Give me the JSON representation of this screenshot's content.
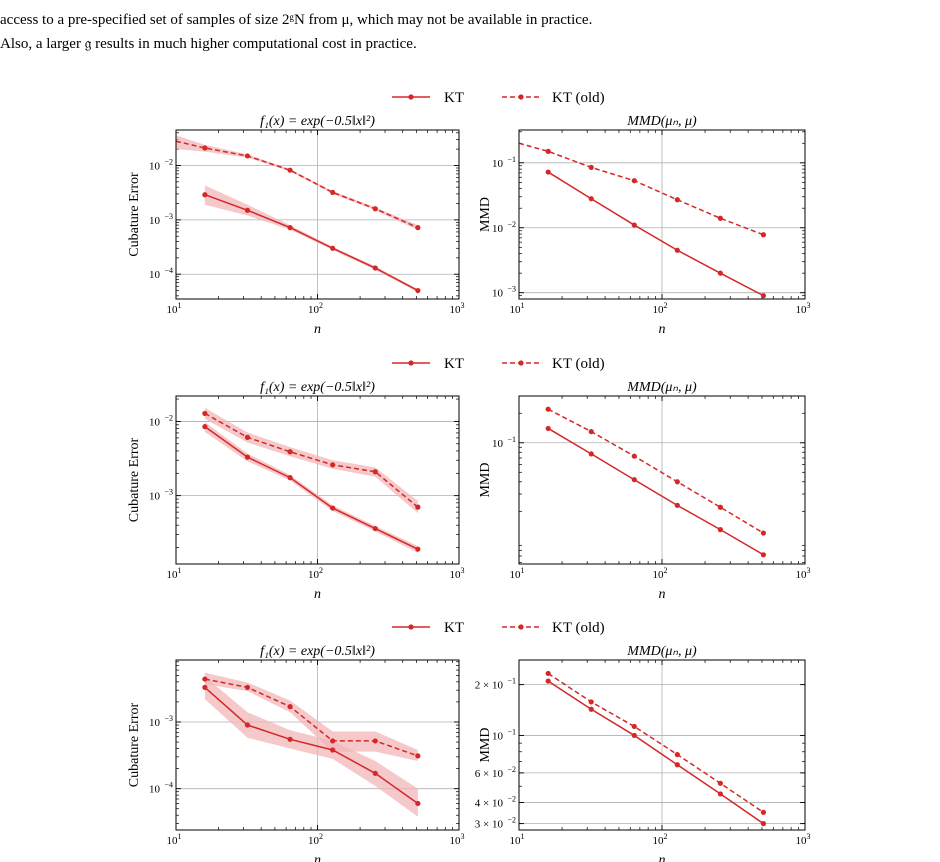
{
  "text": {
    "line1": "access to a pre-specified set of samples of size 2ᵍN from μ, which may not be available in practice.",
    "line2": "Also, a larger 𝔤 results in much higher computational cost in practice."
  },
  "legend": {
    "kt": "KT",
    "kt_old": "KT (old)"
  },
  "colors": {
    "series": "#d62728",
    "band": "#f2b6b8",
    "grid": "#b0b0b0"
  },
  "chart_data": [
    {
      "type": "line",
      "title": "f₁(x) = exp(−0.5‖x‖²)",
      "xlabel": "n",
      "ylabel": "Cubature Error",
      "xscale": "log",
      "yscale": "log",
      "xlim": [
        10,
        1000
      ],
      "ylim": [
        3.5e-05,
        0.045
      ],
      "xticks": [
        {
          "v": 10,
          "b": "10",
          "e": "1"
        },
        {
          "v": 100,
          "b": "10",
          "e": "2"
        },
        {
          "v": 1000,
          "b": "10",
          "e": "3"
        }
      ],
      "yticks": [
        {
          "v": 0.0001,
          "b": "10",
          "e": "−4"
        },
        {
          "v": 0.001,
          "b": "10",
          "e": "−3"
        },
        {
          "v": 0.01,
          "b": "10",
          "e": "−2"
        }
      ],
      "grid": true,
      "series": [
        {
          "name": "KT",
          "dashed": false,
          "x": [
            16,
            32,
            64,
            128,
            256,
            512
          ],
          "y": [
            0.0029,
            0.0015,
            0.00072,
            0.0003,
            0.00013,
            5e-05
          ],
          "band_low": [
            0.0019,
            0.0012,
            0.00066,
            0.00028,
            0.00012,
            4.7e-05
          ],
          "band_high": [
            0.0043,
            0.0019,
            0.0008,
            0.00032,
            0.00014,
            5.3e-05
          ]
        },
        {
          "name": "KT (old)",
          "dashed": true,
          "x": [
            10,
            16,
            32,
            64,
            128,
            256,
            512
          ],
          "y": [
            0.028,
            0.021,
            0.015,
            0.0082,
            0.0032,
            0.0016,
            0.00072
          ],
          "markers_from": 1,
          "band_low": [
            0.02,
            0.018,
            0.014,
            0.0078,
            0.003,
            0.0015,
            0.00065
          ],
          "band_high": [
            0.036,
            0.024,
            0.016,
            0.0086,
            0.0034,
            0.0017,
            0.0008
          ]
        }
      ]
    },
    {
      "type": "line",
      "title": "MMD(μₙ, μ)",
      "xlabel": "n",
      "ylabel": "MMD",
      "xscale": "log",
      "yscale": "log",
      "xlim": [
        10,
        1000
      ],
      "ylim": [
        0.0008,
        0.32
      ],
      "xticks": [
        {
          "v": 10,
          "b": "10",
          "e": "1"
        },
        {
          "v": 100,
          "b": "10",
          "e": "2"
        },
        {
          "v": 1000,
          "b": "10",
          "e": "3"
        }
      ],
      "yticks": [
        {
          "v": 0.001,
          "b": "10",
          "e": "−3"
        },
        {
          "v": 0.01,
          "b": "10",
          "e": "−2"
        },
        {
          "v": 0.1,
          "b": "10",
          "e": "−1"
        }
      ],
      "grid": true,
      "series": [
        {
          "name": "KT",
          "dashed": false,
          "x": [
            16,
            32,
            64,
            128,
            256,
            512
          ],
          "y": [
            0.072,
            0.028,
            0.011,
            0.0045,
            0.002,
            0.0009
          ]
        },
        {
          "name": "KT (old)",
          "dashed": true,
          "x": [
            10,
            16,
            32,
            64,
            128,
            256,
            512
          ],
          "y": [
            0.2,
            0.15,
            0.085,
            0.053,
            0.027,
            0.014,
            0.0078
          ],
          "markers_from": 1
        }
      ]
    },
    {
      "type": "line",
      "title": "f₁(x) = exp(−0.5‖x‖²)",
      "xlabel": "n",
      "ylabel": "Cubature Error",
      "xscale": "log",
      "yscale": "log",
      "xlim": [
        10,
        1000
      ],
      "ylim": [
        0.00012,
        0.022
      ],
      "xticks": [
        {
          "v": 10,
          "b": "10",
          "e": "1"
        },
        {
          "v": 100,
          "b": "10",
          "e": "2"
        },
        {
          "v": 1000,
          "b": "10",
          "e": "3"
        }
      ],
      "yticks": [
        {
          "v": 0.001,
          "b": "10",
          "e": "−3"
        },
        {
          "v": 0.01,
          "b": "10",
          "e": "−2"
        }
      ],
      "grid": true,
      "series": [
        {
          "name": "KT",
          "dashed": false,
          "x": [
            16,
            32,
            64,
            128,
            256,
            512
          ],
          "y": [
            0.0085,
            0.0033,
            0.00175,
            0.00068,
            0.00036,
            0.00019
          ],
          "band_low": [
            0.0072,
            0.0029,
            0.0016,
            0.00062,
            0.00033,
            0.00017
          ],
          "band_high": [
            0.0098,
            0.0037,
            0.0019,
            0.00074,
            0.00039,
            0.00021
          ]
        },
        {
          "name": "KT (old)",
          "dashed": true,
          "x": [
            16,
            32,
            64,
            128,
            256,
            512
          ],
          "y": [
            0.0128,
            0.0061,
            0.0039,
            0.0026,
            0.0021,
            0.0007
          ],
          "band_low": [
            0.0108,
            0.0052,
            0.0034,
            0.0023,
            0.0018,
            0.00058
          ],
          "band_high": [
            0.0152,
            0.0071,
            0.0045,
            0.003,
            0.0024,
            0.00085
          ]
        }
      ]
    },
    {
      "type": "line",
      "title": "MMD(μₙ, μ)",
      "xlabel": "n",
      "ylabel": "MMD",
      "xscale": "log",
      "yscale": "log",
      "xlim": [
        10,
        1000
      ],
      "ylim": [
        0.0058,
        0.3
      ],
      "xticks": [
        {
          "v": 10,
          "b": "10",
          "e": "1"
        },
        {
          "v": 100,
          "b": "10",
          "e": "2"
        },
        {
          "v": 1000,
          "b": "10",
          "e": "3"
        }
      ],
      "yticks": [
        {
          "v": 0.1,
          "b": "10",
          "e": "−1"
        }
      ],
      "grid": true,
      "series": [
        {
          "name": "KT",
          "dashed": false,
          "x": [
            16,
            32,
            64,
            128,
            256,
            512
          ],
          "y": [
            0.14,
            0.077,
            0.042,
            0.023,
            0.013,
            0.0072
          ]
        },
        {
          "name": "KT (old)",
          "dashed": true,
          "x": [
            16,
            32,
            64,
            128,
            256,
            512
          ],
          "y": [
            0.22,
            0.13,
            0.073,
            0.04,
            0.022,
            0.012
          ]
        }
      ]
    },
    {
      "type": "line",
      "title": "f₁(x) = exp(−0.5‖x‖²)",
      "xlabel": "n",
      "ylabel": "Cubature Error",
      "xscale": "log",
      "yscale": "log",
      "xlim": [
        10,
        1000
      ],
      "ylim": [
        2.4e-05,
        0.0085
      ],
      "xticks": [
        {
          "v": 10,
          "b": "10",
          "e": "1"
        },
        {
          "v": 100,
          "b": "10",
          "e": "2"
        },
        {
          "v": 1000,
          "b": "10",
          "e": "3"
        }
      ],
      "yticks": [
        {
          "v": 0.0001,
          "b": "10",
          "e": "−4"
        },
        {
          "v": 0.001,
          "b": "10",
          "e": "−3"
        }
      ],
      "grid": true,
      "series": [
        {
          "name": "KT",
          "dashed": false,
          "x": [
            16,
            32,
            64,
            128,
            256,
            512
          ],
          "y": [
            0.0033,
            0.0009,
            0.00055,
            0.00038,
            0.00017,
            6e-05
          ],
          "band_low": [
            0.0022,
            0.00058,
            0.0004,
            0.00028,
            0.00011,
            3.8e-05
          ],
          "band_high": [
            0.0048,
            0.0014,
            0.00075,
            0.00052,
            0.00026,
            0.0001
          ]
        },
        {
          "name": "KT (old)",
          "dashed": true,
          "x": [
            16,
            32,
            64,
            128,
            256,
            512
          ],
          "y": [
            0.0044,
            0.0033,
            0.0017,
            0.00052,
            0.00052,
            0.00031
          ],
          "band_low": [
            0.0037,
            0.0029,
            0.0014,
            0.00036,
            0.00036,
            0.00026
          ],
          "band_high": [
            0.0055,
            0.0039,
            0.0021,
            0.00072,
            0.00072,
            0.00038
          ]
        }
      ]
    },
    {
      "type": "line",
      "title": "MMD(μₙ, μ)",
      "xlabel": "n",
      "ylabel": "MMD",
      "xscale": "log",
      "yscale": "log",
      "xlim": [
        10,
        1000
      ],
      "ylim": [
        0.0275,
        0.28
      ],
      "xticks": [
        {
          "v": 10,
          "b": "10",
          "e": "1"
        },
        {
          "v": 100,
          "b": "10",
          "e": "2"
        },
        {
          "v": 1000,
          "b": "10",
          "e": "3"
        }
      ],
      "yticks": [
        {
          "v": 0.03,
          "b": "3 × 10",
          "e": "−2"
        },
        {
          "v": 0.04,
          "b": "4 × 10",
          "e": "−2"
        },
        {
          "v": 0.06,
          "b": "6 × 10",
          "e": "−2"
        },
        {
          "v": 0.1,
          "b": "10",
          "e": "−1"
        },
        {
          "v": 0.2,
          "b": "2 × 10",
          "e": "−1"
        }
      ],
      "grid": true,
      "series": [
        {
          "name": "KT",
          "dashed": false,
          "x": [
            16,
            32,
            64,
            128,
            256,
            512
          ],
          "y": [
            0.21,
            0.143,
            0.1,
            0.067,
            0.045,
            0.03
          ]
        },
        {
          "name": "KT (old)",
          "dashed": true,
          "x": [
            16,
            32,
            64,
            128,
            256,
            512
          ],
          "y": [
            0.233,
            0.158,
            0.113,
            0.077,
            0.052,
            0.035
          ]
        }
      ]
    }
  ]
}
